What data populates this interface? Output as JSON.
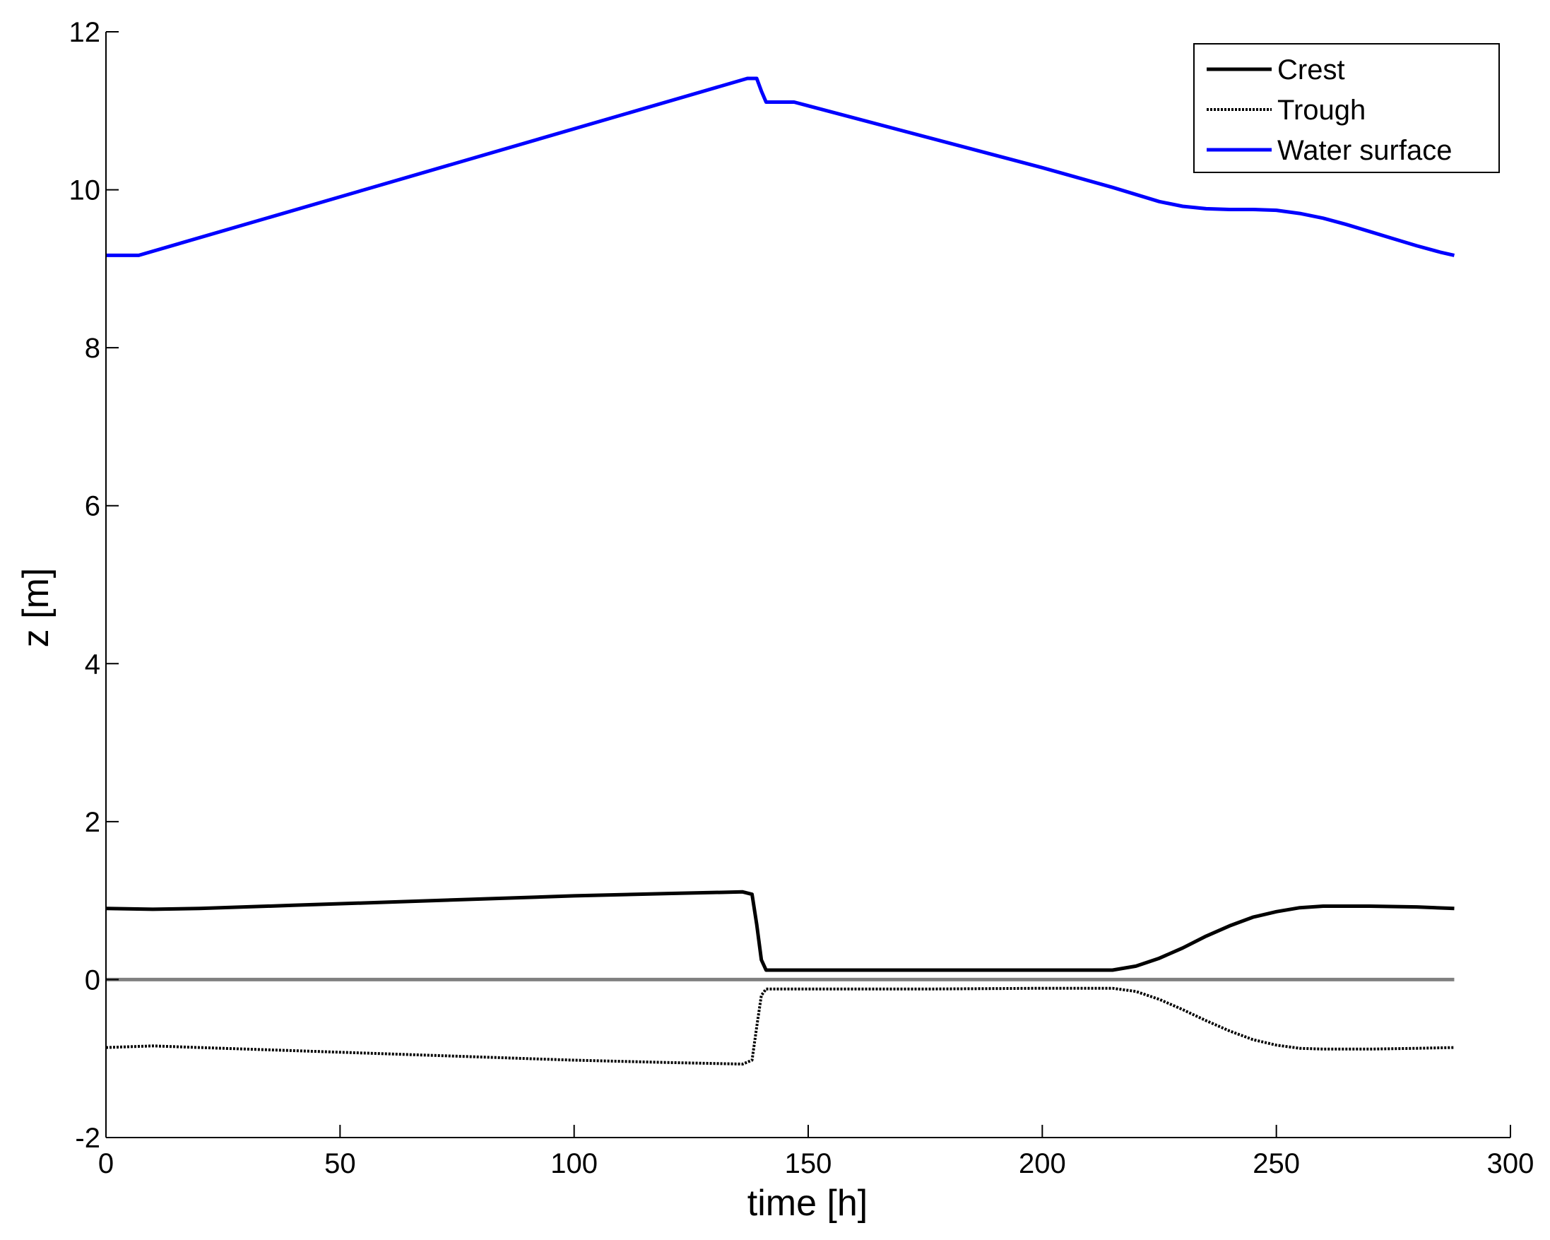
{
  "chart_data": {
    "type": "line",
    "title": "",
    "xlabel": "time [h]",
    "ylabel": "z [m]",
    "xlim": [
      0,
      300
    ],
    "ylim": [
      -2,
      12
    ],
    "xticks": [
      0,
      50,
      100,
      150,
      200,
      250,
      300
    ],
    "yticks": [
      -2,
      0,
      2,
      4,
      6,
      8,
      10,
      12
    ],
    "xtick_labels": [
      "0",
      "50",
      "100",
      "150",
      "200",
      "250",
      "300"
    ],
    "ytick_labels": [
      "-2",
      "0",
      "2",
      "4",
      "6",
      "8",
      "10",
      "12"
    ],
    "grid": false,
    "legend_position": "top-right",
    "zero_line": {
      "y": 0,
      "color": "#808080"
    },
    "series": [
      {
        "name": "Crest",
        "color": "#000000",
        "style": "solid",
        "x": [
          0,
          10,
          20,
          40,
          60,
          80,
          100,
          120,
          136,
          138,
          139,
          140,
          141,
          150,
          175,
          200,
          215,
          220,
          225,
          230,
          235,
          240,
          245,
          250,
          255,
          260,
          270,
          280,
          288
        ],
        "y": [
          0.9,
          0.89,
          0.9,
          0.94,
          0.98,
          1.02,
          1.06,
          1.09,
          1.11,
          1.08,
          0.7,
          0.25,
          0.12,
          0.12,
          0.12,
          0.12,
          0.12,
          0.17,
          0.27,
          0.4,
          0.55,
          0.68,
          0.79,
          0.86,
          0.91,
          0.93,
          0.93,
          0.92,
          0.9
        ]
      },
      {
        "name": "Trough",
        "color": "#000000",
        "style": "dotted",
        "x": [
          0,
          10,
          20,
          40,
          60,
          80,
          100,
          120,
          136,
          138,
          139,
          140,
          141,
          150,
          175,
          200,
          215,
          220,
          225,
          230,
          235,
          240,
          245,
          250,
          255,
          260,
          270,
          280,
          288
        ],
        "y": [
          -0.86,
          -0.84,
          -0.86,
          -0.9,
          -0.94,
          -0.98,
          -1.02,
          -1.05,
          -1.07,
          -1.02,
          -0.6,
          -0.2,
          -0.12,
          -0.12,
          -0.12,
          -0.11,
          -0.11,
          -0.15,
          -0.25,
          -0.38,
          -0.52,
          -0.65,
          -0.76,
          -0.83,
          -0.87,
          -0.88,
          -0.88,
          -0.87,
          -0.86
        ]
      },
      {
        "name": "Water surface",
        "color": "#0000FF",
        "style": "solid",
        "x": [
          0,
          7,
          137,
          139,
          140,
          141,
          147,
          200,
          215,
          225,
          230,
          235,
          240,
          245,
          250,
          255,
          260,
          265,
          270,
          275,
          280,
          285,
          288
        ],
        "y": [
          9.17,
          9.17,
          11.41,
          11.41,
          11.25,
          11.11,
          11.11,
          10.28,
          10.03,
          9.85,
          9.79,
          9.76,
          9.75,
          9.75,
          9.74,
          9.7,
          9.64,
          9.56,
          9.47,
          9.38,
          9.29,
          9.21,
          9.17
        ]
      }
    ]
  }
}
